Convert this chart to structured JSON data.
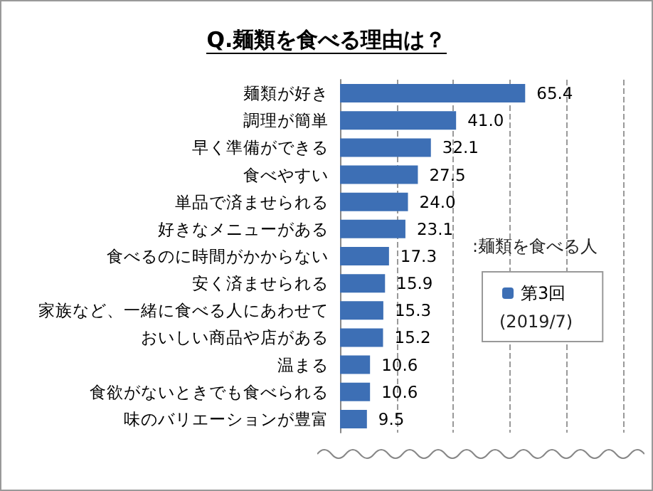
{
  "chart_data": {
    "type": "bar",
    "orientation": "horizontal",
    "title": "Q.麺類を食べる理由は？",
    "categories": [
      "麺類が好き",
      "調理が簡単",
      "早く準備ができる",
      "食べやすい",
      "単品で済ませられる",
      "好きなメニューがある",
      "食べるのに時間がかからない",
      "安く済ませられる",
      "家族など、一緒に食べる人にあわせて",
      "おいしい商品や店がある",
      "温まる",
      "食欲がないときでも食べられる",
      "味のバリエーションが豊富"
    ],
    "series": [
      {
        "name": "第3回",
        "color": "#3d6fb5",
        "values": [
          65.4,
          41.0,
          32.1,
          27.5,
          24.0,
          23.1,
          17.3,
          15.9,
          15.3,
          15.2,
          10.6,
          10.6,
          9.5
        ],
        "value_labels": [
          "65.4",
          "41.0",
          "32.1",
          "27.5",
          "24.0",
          "23.1",
          "17.3",
          "15.9",
          "15.3",
          "15.2",
          "10.6",
          "10.6",
          "9.5"
        ]
      }
    ],
    "xlim": [
      0,
      100
    ],
    "xticks": [
      {
        "value": 0,
        "label": null
      },
      {
        "value": 20,
        "label": null
      },
      {
        "value": 40,
        "label": null
      },
      {
        "value": 60,
        "label": null
      },
      {
        "value": 80,
        "label": null
      },
      {
        "value": 100,
        "label": null
      }
    ],
    "grid": "x",
    "tick_labels": "y",
    "legend": "right",
    "annotations": [
      ":麺類を食べる人",
      "(2019/7)"
    ]
  }
}
